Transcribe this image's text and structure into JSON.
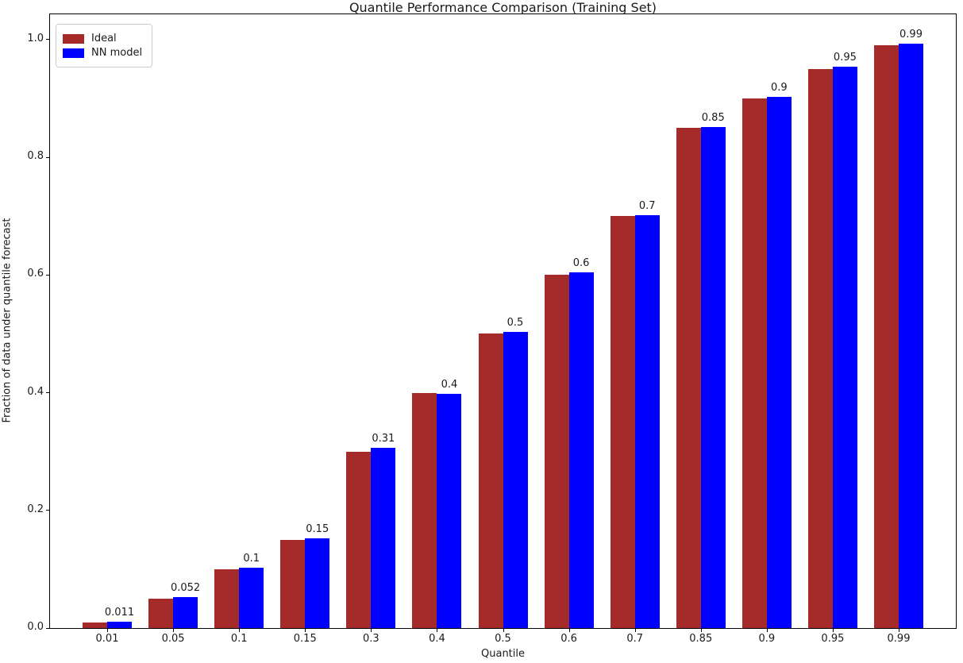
{
  "chart_data": {
    "type": "bar",
    "title": "Quantile Performance Comparison (Training Set)",
    "xlabel": "Quantile",
    "ylabel": "Fraction of data under quantile forecast",
    "categories": [
      "0.01",
      "0.05",
      "0.1",
      "0.15",
      "0.3",
      "0.4",
      "0.5",
      "0.6",
      "0.7",
      "0.85",
      "0.9",
      "0.95",
      "0.99"
    ],
    "series": [
      {
        "name": "Ideal",
        "color": "#A52A2A",
        "values": [
          0.01,
          0.05,
          0.1,
          0.15,
          0.3,
          0.4,
          0.5,
          0.6,
          0.7,
          0.85,
          0.9,
          0.95,
          0.99
        ]
      },
      {
        "name": "NN model",
        "color": "#0000FF",
        "values": [
          0.011,
          0.052,
          0.102,
          0.152,
          0.306,
          0.398,
          0.503,
          0.604,
          0.701,
          0.851,
          0.903,
          0.954,
          0.993
        ]
      }
    ],
    "bar_labels": [
      "0.011",
      "0.052",
      "0.1",
      "0.15",
      "0.31",
      "0.4",
      "0.5",
      "0.6",
      "0.7",
      "0.85",
      "0.9",
      "0.95",
      "0.99"
    ],
    "y_ticks": [
      "0.0",
      "0.2",
      "0.4",
      "0.6",
      "0.8",
      "1.0"
    ],
    "ylim": [
      0,
      1.043
    ],
    "grid": false,
    "legend_position": "upper left"
  }
}
